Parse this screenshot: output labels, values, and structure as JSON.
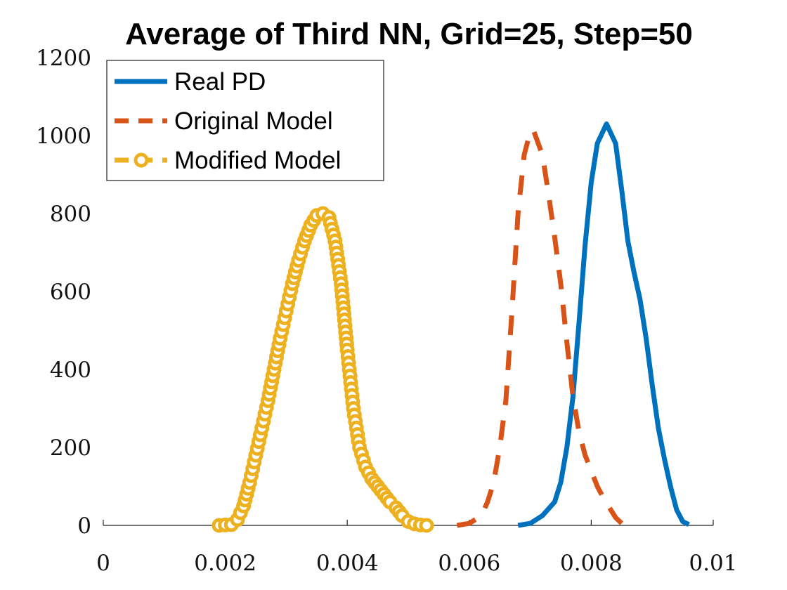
{
  "chart_data": {
    "type": "line",
    "title": "Average of Third NN, Grid=25, Step=50",
    "xlabel": "",
    "ylabel": "",
    "xlim": [
      0,
      0.01
    ],
    "ylim": [
      0,
      1200
    ],
    "xticks": [
      "0",
      "0.002",
      "0.004",
      "0.006",
      "0.008",
      "0.01"
    ],
    "yticks": [
      "0",
      "200",
      "400",
      "600",
      "800",
      "1000",
      "1200"
    ],
    "legend_position": "top-left",
    "grid": false,
    "series": [
      {
        "name": "Real PD",
        "color": "#0072BD",
        "style": "solid",
        "marker": "none",
        "points": [
          [
            0.0068,
            0
          ],
          [
            0.007,
            5
          ],
          [
            0.0072,
            25
          ],
          [
            0.0074,
            60
          ],
          [
            0.0075,
            110
          ],
          [
            0.0076,
            200
          ],
          [
            0.0077,
            330
          ],
          [
            0.0078,
            520
          ],
          [
            0.0079,
            720
          ],
          [
            0.008,
            880
          ],
          [
            0.0081,
            980
          ],
          [
            0.00825,
            1030
          ],
          [
            0.0084,
            980
          ],
          [
            0.0085,
            860
          ],
          [
            0.0086,
            730
          ],
          [
            0.0087,
            650
          ],
          [
            0.0088,
            580
          ],
          [
            0.0089,
            480
          ],
          [
            0.009,
            360
          ],
          [
            0.0091,
            250
          ],
          [
            0.0092,
            170
          ],
          [
            0.0093,
            100
          ],
          [
            0.0094,
            40
          ],
          [
            0.0095,
            10
          ],
          [
            0.0096,
            2
          ]
        ]
      },
      {
        "name": "Original Model",
        "color": "#D95319",
        "style": "dashed",
        "marker": "none",
        "points": [
          [
            0.0058,
            0
          ],
          [
            0.006,
            5
          ],
          [
            0.0062,
            25
          ],
          [
            0.0063,
            60
          ],
          [
            0.0064,
            110
          ],
          [
            0.0065,
            200
          ],
          [
            0.0066,
            320
          ],
          [
            0.0067,
            550
          ],
          [
            0.0068,
            800
          ],
          [
            0.0069,
            950
          ],
          [
            0.007,
            1010
          ],
          [
            0.00705,
            1015
          ],
          [
            0.0072,
            950
          ],
          [
            0.0073,
            850
          ],
          [
            0.0074,
            740
          ],
          [
            0.0075,
            620
          ],
          [
            0.0076,
            470
          ],
          [
            0.0077,
            330
          ],
          [
            0.0078,
            240
          ],
          [
            0.0079,
            180
          ],
          [
            0.008,
            140
          ],
          [
            0.0081,
            100
          ],
          [
            0.0082,
            70
          ],
          [
            0.0083,
            45
          ],
          [
            0.0084,
            20
          ],
          [
            0.0085,
            5
          ]
        ]
      },
      {
        "name": "Modified Model",
        "color": "#EDB120",
        "style": "dashed",
        "marker": "circle",
        "points": [
          [
            0.0019,
            0
          ],
          [
            0.0021,
            2
          ],
          [
            0.0022,
            15
          ],
          [
            0.0023,
            50
          ],
          [
            0.0024,
            110
          ],
          [
            0.0025,
            180
          ],
          [
            0.0026,
            250
          ],
          [
            0.0027,
            320
          ],
          [
            0.0028,
            400
          ],
          [
            0.0029,
            480
          ],
          [
            0.003,
            550
          ],
          [
            0.0031,
            620
          ],
          [
            0.0032,
            680
          ],
          [
            0.0033,
            730
          ],
          [
            0.0034,
            770
          ],
          [
            0.0035,
            795
          ],
          [
            0.0036,
            800
          ],
          [
            0.0037,
            790
          ],
          [
            0.0038,
            730
          ],
          [
            0.0039,
            620
          ],
          [
            0.004,
            450
          ],
          [
            0.0041,
            300
          ],
          [
            0.0042,
            200
          ],
          [
            0.0043,
            150
          ],
          [
            0.0044,
            120
          ],
          [
            0.0045,
            100
          ],
          [
            0.0046,
            80
          ],
          [
            0.0047,
            60
          ],
          [
            0.0048,
            45
          ],
          [
            0.0049,
            25
          ],
          [
            0.005,
            10
          ],
          [
            0.0051,
            4
          ],
          [
            0.0052,
            1
          ],
          [
            0.0053,
            0
          ]
        ]
      }
    ]
  }
}
